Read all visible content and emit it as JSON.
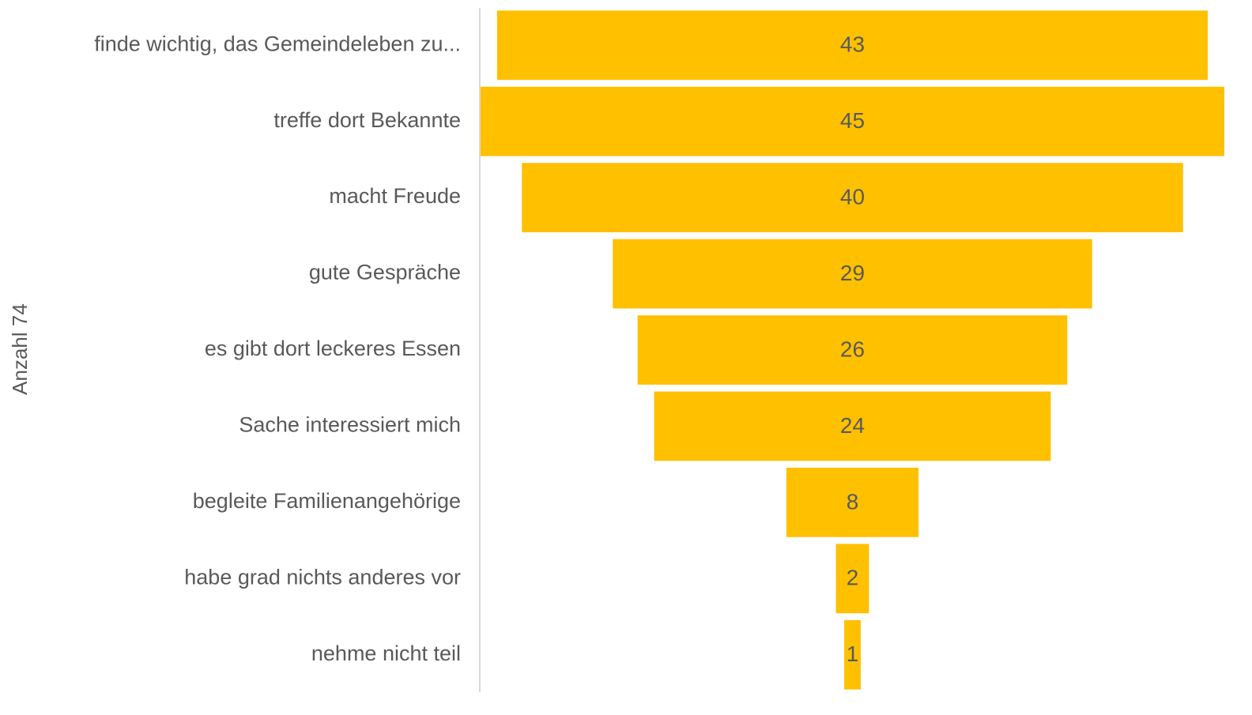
{
  "chart_data": {
    "type": "funnel",
    "y_label": "Anzahl 74",
    "categories": [
      "finde wichtig, das Gemeindeleben zu...",
      "treffe dort Bekannte",
      "macht Freude",
      "gute Gespräche",
      "es gibt dort leckeres Essen",
      "Sache interessiert mich",
      "begleite Familienangehörige",
      "habe grad nichts anderes vor",
      "nehme nicht teil"
    ],
    "values": [
      43,
      45,
      40,
      29,
      26,
      24,
      8,
      2,
      1
    ],
    "color": "#ffc000"
  }
}
